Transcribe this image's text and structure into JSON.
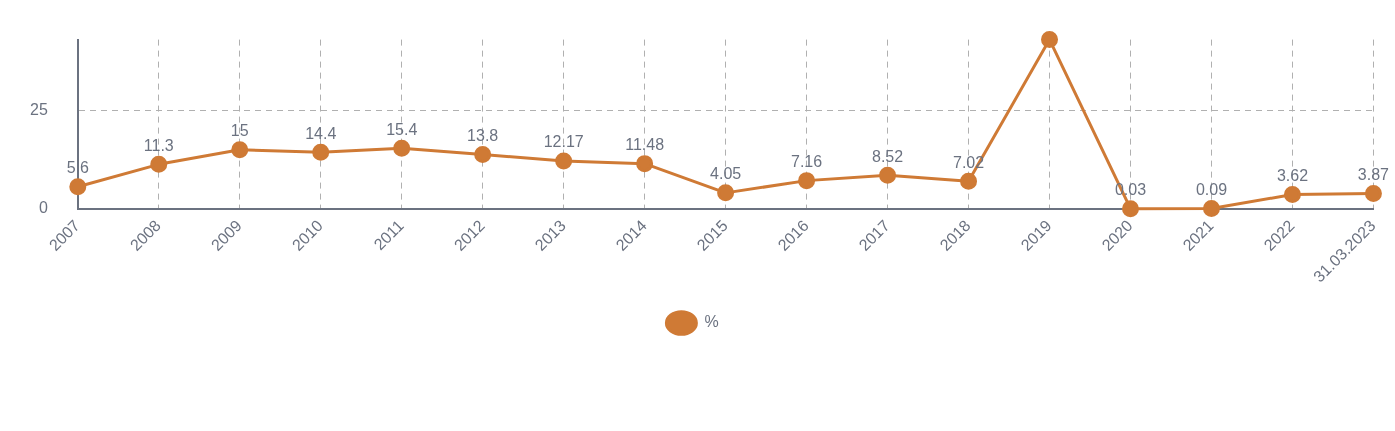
{
  "chart_data": {
    "type": "line",
    "categories": [
      "2007",
      "2008",
      "2009",
      "2010",
      "2011",
      "2012",
      "2013",
      "2014",
      "2015",
      "2016",
      "2017",
      "2018",
      "2019",
      "2020",
      "2021",
      "2022",
      "31.03.2023"
    ],
    "series": [
      {
        "name": "%",
        "color": "#cf7a35",
        "values": [
          5.6,
          11.3,
          15,
          14.4,
          15.4,
          13.8,
          12.17,
          11.48,
          4.05,
          7.16,
          8.52,
          7.02,
          43,
          0.03,
          0.09,
          3.62,
          3.87
        ],
        "value_labels": [
          "5.6",
          "11.3",
          "15",
          "14.4",
          "15.4",
          "13.8",
          "12.17",
          "11.48",
          "4.05",
          "7.16",
          "8.52",
          "7.02",
          null,
          "0.03",
          "0.09",
          "3.62",
          "3.87"
        ]
      }
    ],
    "ylim": [
      0,
      43
    ],
    "yticks": [
      0,
      25
    ],
    "grid": true,
    "legend": "bottom",
    "marker": "circle",
    "line_style": "solid"
  }
}
